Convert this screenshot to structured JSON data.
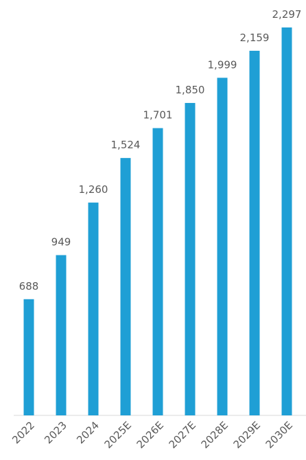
{
  "chart_data": {
    "type": "bar",
    "categories": [
      "2022",
      "2023",
      "2024",
      "2025E",
      "2026E",
      "2027E",
      "2028E",
      "2029E",
      "2030E"
    ],
    "values": [
      688,
      949,
      1260,
      1524,
      1701,
      1850,
      1999,
      2159,
      2297
    ],
    "value_labels": [
      "688",
      "949",
      "1,260",
      "1,524",
      "1,701",
      "1,850",
      "1,999",
      "2,159",
      "2,297"
    ],
    "color": "#1f9fd5"
  }
}
